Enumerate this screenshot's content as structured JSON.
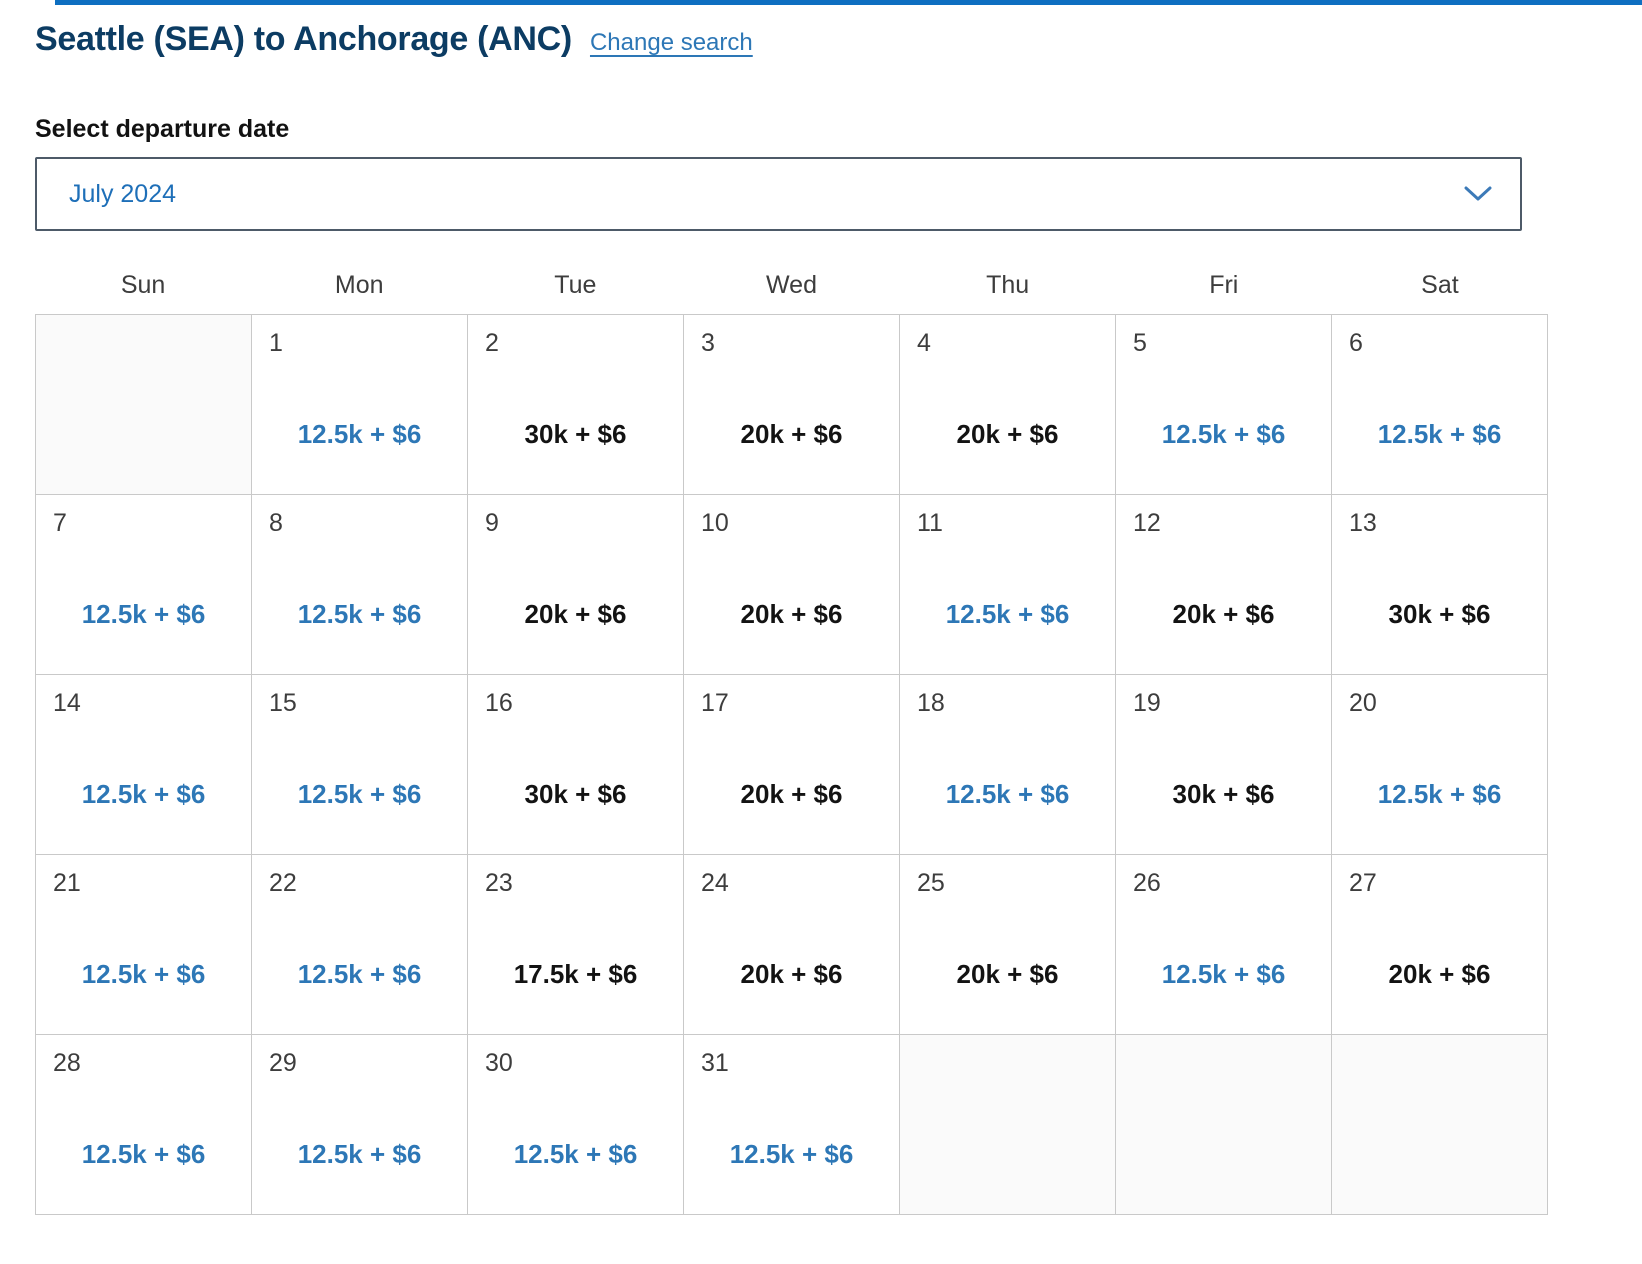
{
  "header": {
    "title": "Seattle (SEA) to Anchorage (ANC)",
    "change_search": "Change search"
  },
  "departure": {
    "label": "Select departure date",
    "selected_month": "July 2024"
  },
  "calendar": {
    "day_headers": [
      "Sun",
      "Mon",
      "Tue",
      "Wed",
      "Thu",
      "Fri",
      "Sat"
    ],
    "weeks": [
      [
        {
          "day": null,
          "price": null
        },
        {
          "day": "1",
          "price": "12.5k + $6",
          "lowest": true
        },
        {
          "day": "2",
          "price": "30k + $6",
          "lowest": false
        },
        {
          "day": "3",
          "price": "20k + $6",
          "lowest": false
        },
        {
          "day": "4",
          "price": "20k + $6",
          "lowest": false
        },
        {
          "day": "5",
          "price": "12.5k + $6",
          "lowest": true
        },
        {
          "day": "6",
          "price": "12.5k + $6",
          "lowest": true
        }
      ],
      [
        {
          "day": "7",
          "price": "12.5k + $6",
          "lowest": true
        },
        {
          "day": "8",
          "price": "12.5k + $6",
          "lowest": true
        },
        {
          "day": "9",
          "price": "20k + $6",
          "lowest": false
        },
        {
          "day": "10",
          "price": "20k + $6",
          "lowest": false
        },
        {
          "day": "11",
          "price": "12.5k + $6",
          "lowest": true
        },
        {
          "day": "12",
          "price": "20k + $6",
          "lowest": false
        },
        {
          "day": "13",
          "price": "30k + $6",
          "lowest": false
        }
      ],
      [
        {
          "day": "14",
          "price": "12.5k + $6",
          "lowest": true
        },
        {
          "day": "15",
          "price": "12.5k + $6",
          "lowest": true
        },
        {
          "day": "16",
          "price": "30k + $6",
          "lowest": false
        },
        {
          "day": "17",
          "price": "20k + $6",
          "lowest": false
        },
        {
          "day": "18",
          "price": "12.5k + $6",
          "lowest": true
        },
        {
          "day": "19",
          "price": "30k + $6",
          "lowest": false
        },
        {
          "day": "20",
          "price": "12.5k + $6",
          "lowest": true
        }
      ],
      [
        {
          "day": "21",
          "price": "12.5k + $6",
          "lowest": true
        },
        {
          "day": "22",
          "price": "12.5k + $6",
          "lowest": true
        },
        {
          "day": "23",
          "price": "17.5k + $6",
          "lowest": false
        },
        {
          "day": "24",
          "price": "20k + $6",
          "lowest": false
        },
        {
          "day": "25",
          "price": "20k + $6",
          "lowest": false
        },
        {
          "day": "26",
          "price": "12.5k + $6",
          "lowest": true
        },
        {
          "day": "27",
          "price": "20k + $6",
          "lowest": false
        }
      ],
      [
        {
          "day": "28",
          "price": "12.5k + $6",
          "lowest": true
        },
        {
          "day": "29",
          "price": "12.5k + $6",
          "lowest": true
        },
        {
          "day": "30",
          "price": "12.5k + $6",
          "lowest": true
        },
        {
          "day": "31",
          "price": "12.5k + $6",
          "lowest": true
        },
        {
          "day": null,
          "price": null
        },
        {
          "day": null,
          "price": null
        },
        {
          "day": null,
          "price": null
        }
      ]
    ]
  },
  "icons": {
    "dropdown_chevron": "chevron-down-icon"
  },
  "colors": {
    "title_navy": "#0c3c63",
    "link_blue": "#2d77b6",
    "lowest_price_blue": "#2d77b6",
    "standard_price_black": "#131313",
    "top_bar_blue": "#0e6fc1",
    "grid_border_gray": "#c9c9c9",
    "empty_cell_gray": "#fafafa",
    "select_border_gray": "#4d5a68"
  }
}
